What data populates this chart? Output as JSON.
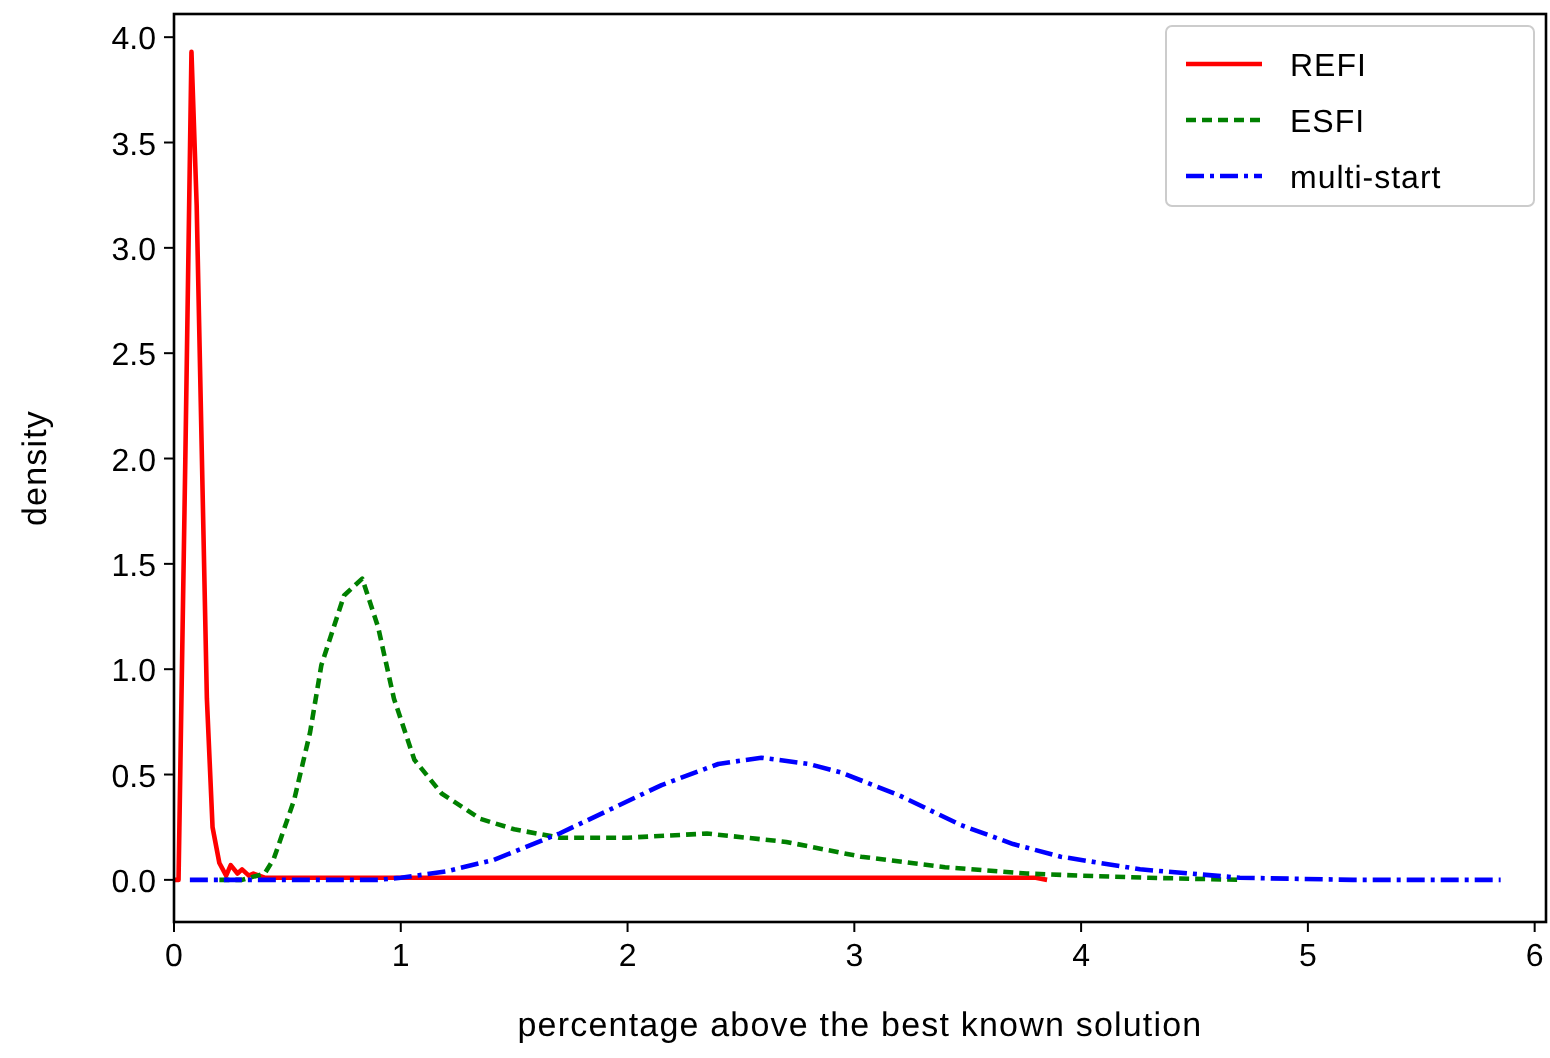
{
  "chart_data": {
    "type": "line",
    "xlabel": "percentage above the best known solution",
    "ylabel": "density",
    "xlim": [
      0,
      6.05
    ],
    "ylim": [
      -0.2,
      4.11
    ],
    "xticks": [
      0,
      1,
      2,
      3,
      4,
      5,
      6
    ],
    "yticks": [
      {
        "value": 0,
        "label": "0.0"
      },
      {
        "value": 0.5,
        "label": "0.5"
      },
      {
        "value": 1,
        "label": "1.0"
      },
      {
        "value": 1.5,
        "label": "1.5"
      },
      {
        "value": 2,
        "label": "2.0"
      },
      {
        "value": 2.5,
        "label": "2.5"
      },
      {
        "value": 3,
        "label": "3.0"
      },
      {
        "value": 3.5,
        "label": "3.5"
      },
      {
        "value": 4,
        "label": "4.0"
      }
    ],
    "legend": "top right",
    "grid": false,
    "series": [
      {
        "name": "REFI",
        "color": "#ff0000",
        "line_style": "solid",
        "x": [
          0,
          0.02,
          0.05,
          0.077,
          0.1,
          0.145,
          0.17,
          0.2,
          0.23,
          0.25,
          0.28,
          0.3,
          0.33,
          0.35,
          0.4,
          0.5,
          1,
          2,
          3,
          3.5,
          3.8,
          3.85
        ],
        "values": [
          0,
          0,
          2.0,
          3.93,
          3.2,
          0.86,
          0.25,
          0.08,
          0.02,
          0.07,
          0.03,
          0.05,
          0.02,
          0.03,
          0.01,
          0.01,
          0.01,
          0.01,
          0.01,
          0.01,
          0.01,
          0
        ]
      },
      {
        "name": "ESFI",
        "color": "#008000",
        "line_style": "dashed",
        "x": [
          0.2,
          0.3,
          0.4,
          0.44,
          0.53,
          0.6,
          0.65,
          0.75,
          0.83,
          0.9,
          0.97,
          1.06,
          1.18,
          1.35,
          1.5,
          1.7,
          2,
          2.35,
          2.7,
          3.03,
          3.4,
          3.76,
          4,
          4.3,
          4.7
        ],
        "values": [
          0,
          0,
          0.03,
          0.1,
          0.38,
          0.7,
          1.02,
          1.35,
          1.43,
          1.2,
          0.86,
          0.57,
          0.41,
          0.29,
          0.24,
          0.2,
          0.2,
          0.22,
          0.18,
          0.11,
          0.06,
          0.03,
          0.02,
          0.01,
          0
        ]
      },
      {
        "name": "multi-start",
        "color": "#0000ff",
        "line_style": "dashdot",
        "x": [
          0.07,
          0.5,
          0.9,
          1.0,
          1.2,
          1.41,
          1.7,
          2.15,
          2.4,
          2.59,
          2.8,
          2.94,
          3.2,
          3.47,
          3.7,
          3.91,
          4.26,
          4.7,
          5.2,
          5.85
        ],
        "values": [
          0,
          0,
          0,
          0.01,
          0.04,
          0.095,
          0.22,
          0.45,
          0.55,
          0.58,
          0.55,
          0.51,
          0.4,
          0.26,
          0.17,
          0.11,
          0.05,
          0.01,
          0,
          0
        ]
      }
    ]
  }
}
